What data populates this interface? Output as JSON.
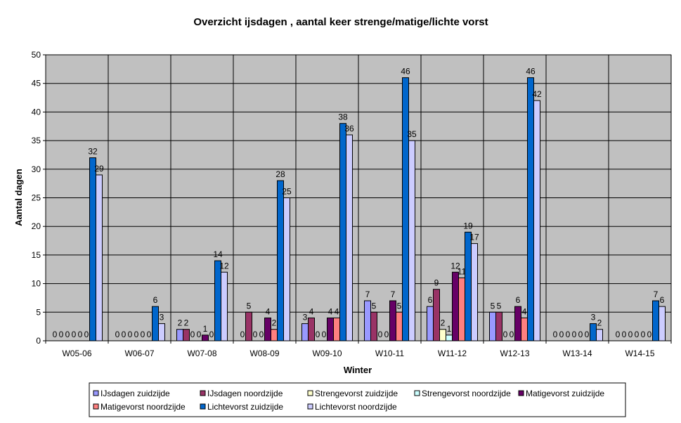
{
  "chart_data": {
    "type": "bar",
    "title": "Overzicht ijsdagen , aantal keer strenge/matige/lichte vorst",
    "xlabel": "Winter",
    "ylabel": "Aantal dagen",
    "ylim": [
      0,
      50
    ],
    "yticks": [
      0,
      5,
      10,
      15,
      20,
      25,
      30,
      35,
      40,
      45,
      50
    ],
    "grid": true,
    "legend": "bottom",
    "categories": [
      "W05-06",
      "W06-07",
      "W07-08",
      "W08-09",
      "W09-10",
      "W10-11",
      "W11-12",
      "W12-13",
      "W13-14",
      "W14-15"
    ],
    "series": [
      {
        "name": "IJsdagen zuidzijde",
        "color": "#9999FF",
        "values": [
          0,
          0,
          2,
          0,
          3,
          7,
          6,
          5,
          0,
          0
        ]
      },
      {
        "name": "IJsdagen noordzijde",
        "color": "#993366",
        "values": [
          0,
          0,
          2,
          5,
          4,
          5,
          9,
          5,
          0,
          0
        ]
      },
      {
        "name": "Strengevorst zuidzijde",
        "color": "#FFFFCC",
        "values": [
          0,
          0,
          0,
          0,
          0,
          0,
          2,
          0,
          0,
          0
        ]
      },
      {
        "name": "Strengevorst noordzijde",
        "color": "#CCFFFF",
        "values": [
          0,
          0,
          0,
          0,
          0,
          0,
          1,
          0,
          0,
          0
        ]
      },
      {
        "name": "Matigevorst zuidzijde",
        "color": "#660066",
        "values": [
          0,
          0,
          1,
          4,
          4,
          7,
          12,
          6,
          0,
          0
        ]
      },
      {
        "name": "Matigevorst noordzijde",
        "color": "#FF8080",
        "values": [
          0,
          0,
          0,
          2,
          4,
          5,
          11,
          4,
          0,
          0
        ]
      },
      {
        "name": "Lichtevorst zuidzijde",
        "color": "#0066CC",
        "values": [
          32,
          6,
          14,
          28,
          38,
          46,
          19,
          46,
          3,
          7
        ]
      },
      {
        "name": "Lichtevorst noordzijde",
        "color": "#CCCCFF",
        "values": [
          29,
          3,
          12,
          25,
          36,
          35,
          17,
          42,
          2,
          6
        ]
      }
    ],
    "plot_background": "#C0C0C0"
  }
}
